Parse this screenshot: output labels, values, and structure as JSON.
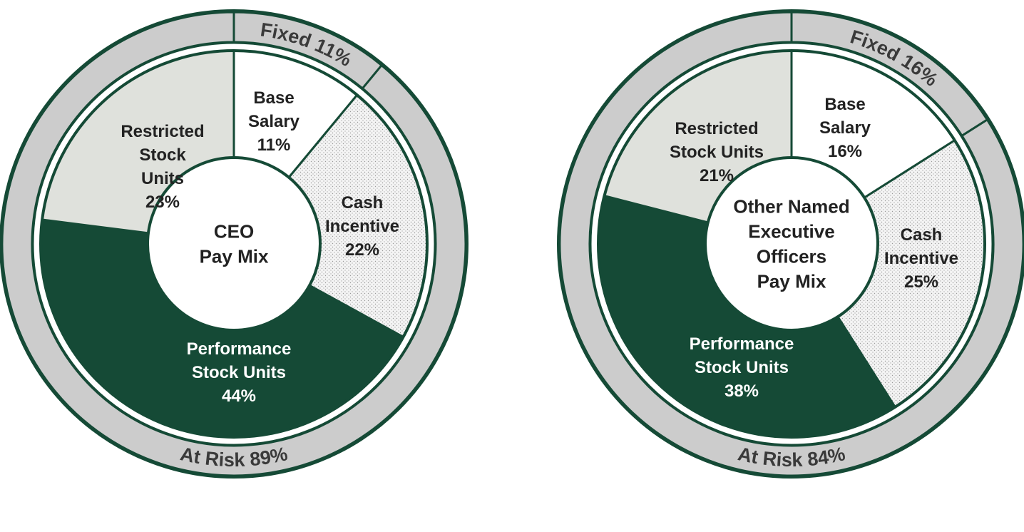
{
  "colors": {
    "border": "#154a36",
    "ring_fill": "#cccccc",
    "base_salary": "#ffffff",
    "cash_incentive": "#f2f2f2",
    "performance_stock_units": "#154a36",
    "restricted_stock_units": "#dfe1dc",
    "center": "#ffffff"
  },
  "chart_data": [
    {
      "type": "pie",
      "title": "CEO Pay Mix",
      "center_label": [
        "CEO",
        "Pay Mix"
      ],
      "slices": [
        {
          "key": "base_salary",
          "label": [
            "Base",
            "Salary"
          ],
          "value": 11,
          "value_label": "11%"
        },
        {
          "key": "cash_incentive",
          "label": [
            "Cash",
            "Incentive"
          ],
          "value": 22,
          "value_label": "22%"
        },
        {
          "key": "performance_stock_units",
          "label": [
            "Performance",
            "Stock Units"
          ],
          "value": 44,
          "value_label": "44%"
        },
        {
          "key": "restricted_stock_units",
          "label": [
            "Restricted",
            "Stock",
            "Units"
          ],
          "value": 23,
          "value_label": "23%"
        }
      ],
      "outer_ring": [
        {
          "key": "fixed",
          "label": "Fixed 11%",
          "value": 11
        },
        {
          "key": "at_risk",
          "label": "At Risk 89%",
          "value": 89
        }
      ]
    },
    {
      "type": "pie",
      "title": "Other Named Executive Officers Pay Mix",
      "center_label": [
        "Other Named",
        "Executive",
        "Officers",
        "Pay Mix"
      ],
      "slices": [
        {
          "key": "base_salary",
          "label": [
            "Base",
            "Salary"
          ],
          "value": 16,
          "value_label": "16%"
        },
        {
          "key": "cash_incentive",
          "label": [
            "Cash",
            "Incentive"
          ],
          "value": 25,
          "value_label": "25%"
        },
        {
          "key": "performance_stock_units",
          "label": [
            "Performance",
            "Stock Units"
          ],
          "value": 38,
          "value_label": "38%"
        },
        {
          "key": "restricted_stock_units",
          "label": [
            "Restricted",
            "Stock Units"
          ],
          "value": 21,
          "value_label": "21%"
        }
      ],
      "outer_ring": [
        {
          "key": "fixed",
          "label": "Fixed 16%",
          "value": 16
        },
        {
          "key": "at_risk",
          "label": "At Risk 84%",
          "value": 84
        }
      ]
    }
  ]
}
